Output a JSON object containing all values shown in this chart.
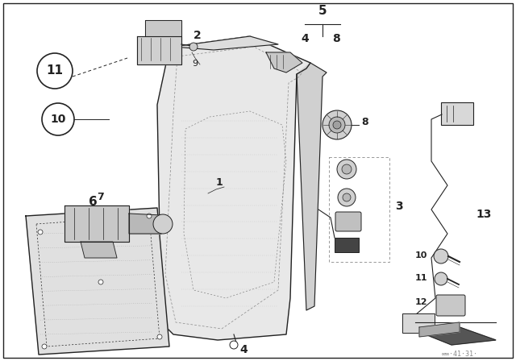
{
  "bg_color": "#ffffff",
  "line_color": "#222222",
  "gray_color": "#888888",
  "border_color": "#000000",
  "fig_width": 6.4,
  "fig_height": 4.48,
  "dpi": 100
}
